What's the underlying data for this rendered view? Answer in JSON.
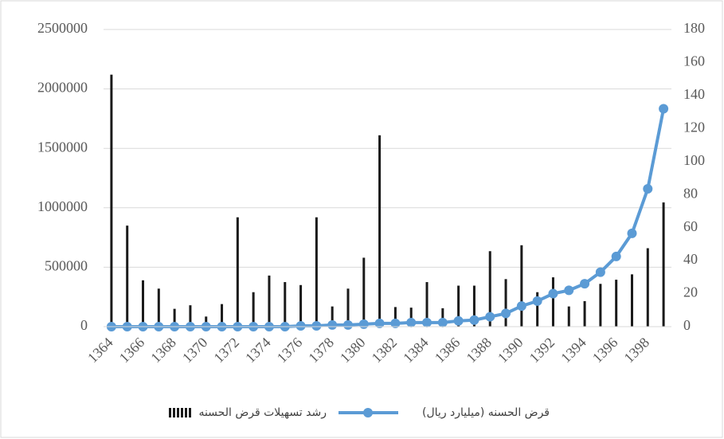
{
  "chart_data": {
    "type": "bar-line",
    "categories": [
      "1364",
      null,
      "1366",
      null,
      "1368",
      null,
      "1370",
      null,
      "1372",
      null,
      "1374",
      null,
      "1376",
      null,
      "1378",
      null,
      "1380",
      null,
      "1382",
      null,
      "1384",
      null,
      "1386",
      null,
      "1388",
      null,
      "1390",
      null,
      "1392",
      null,
      "1394",
      null,
      "1396",
      null,
      "1398",
      null
    ],
    "series": [
      {
        "name": "رشد تسهیلات قرض الحسنه",
        "type": "bar",
        "axis": "y",
        "color": "#1a1a1a",
        "values": [
          2120000,
          850000,
          390000,
          320000,
          150000,
          180000,
          85000,
          190000,
          920000,
          290000,
          430000,
          375000,
          350000,
          920000,
          170000,
          320000,
          580000,
          1610000,
          165000,
          160000,
          375000,
          155000,
          345000,
          345000,
          635000,
          400000,
          685000,
          290000,
          415000,
          170000,
          215000,
          360000,
          395000,
          440000,
          660000,
          1045000
        ]
      },
      {
        "name": "قرض الحسنه (میلیارد ریال)",
        "type": "line",
        "axis": "y2",
        "color": "#5b9bd5",
        "values": [
          0,
          0,
          0,
          0,
          0,
          0,
          0,
          0,
          0,
          0,
          0,
          0,
          0.5,
          0.5,
          1,
          1,
          1.5,
          2,
          2,
          2.5,
          2.5,
          2.5,
          3.5,
          4,
          6,
          8,
          12.5,
          15.5,
          20,
          22,
          26,
          33,
          42.5,
          56.5,
          83.5,
          132
        ]
      }
    ],
    "ylim": [
      0,
      2500000
    ],
    "yticks": [
      0,
      500000,
      1000000,
      1500000,
      2000000,
      2500000
    ],
    "y2lim": [
      0,
      180
    ],
    "y2ticks": [
      0,
      20,
      40,
      60,
      80,
      100,
      120,
      140,
      160,
      180
    ],
    "grid": true,
    "legend": "bottom"
  }
}
